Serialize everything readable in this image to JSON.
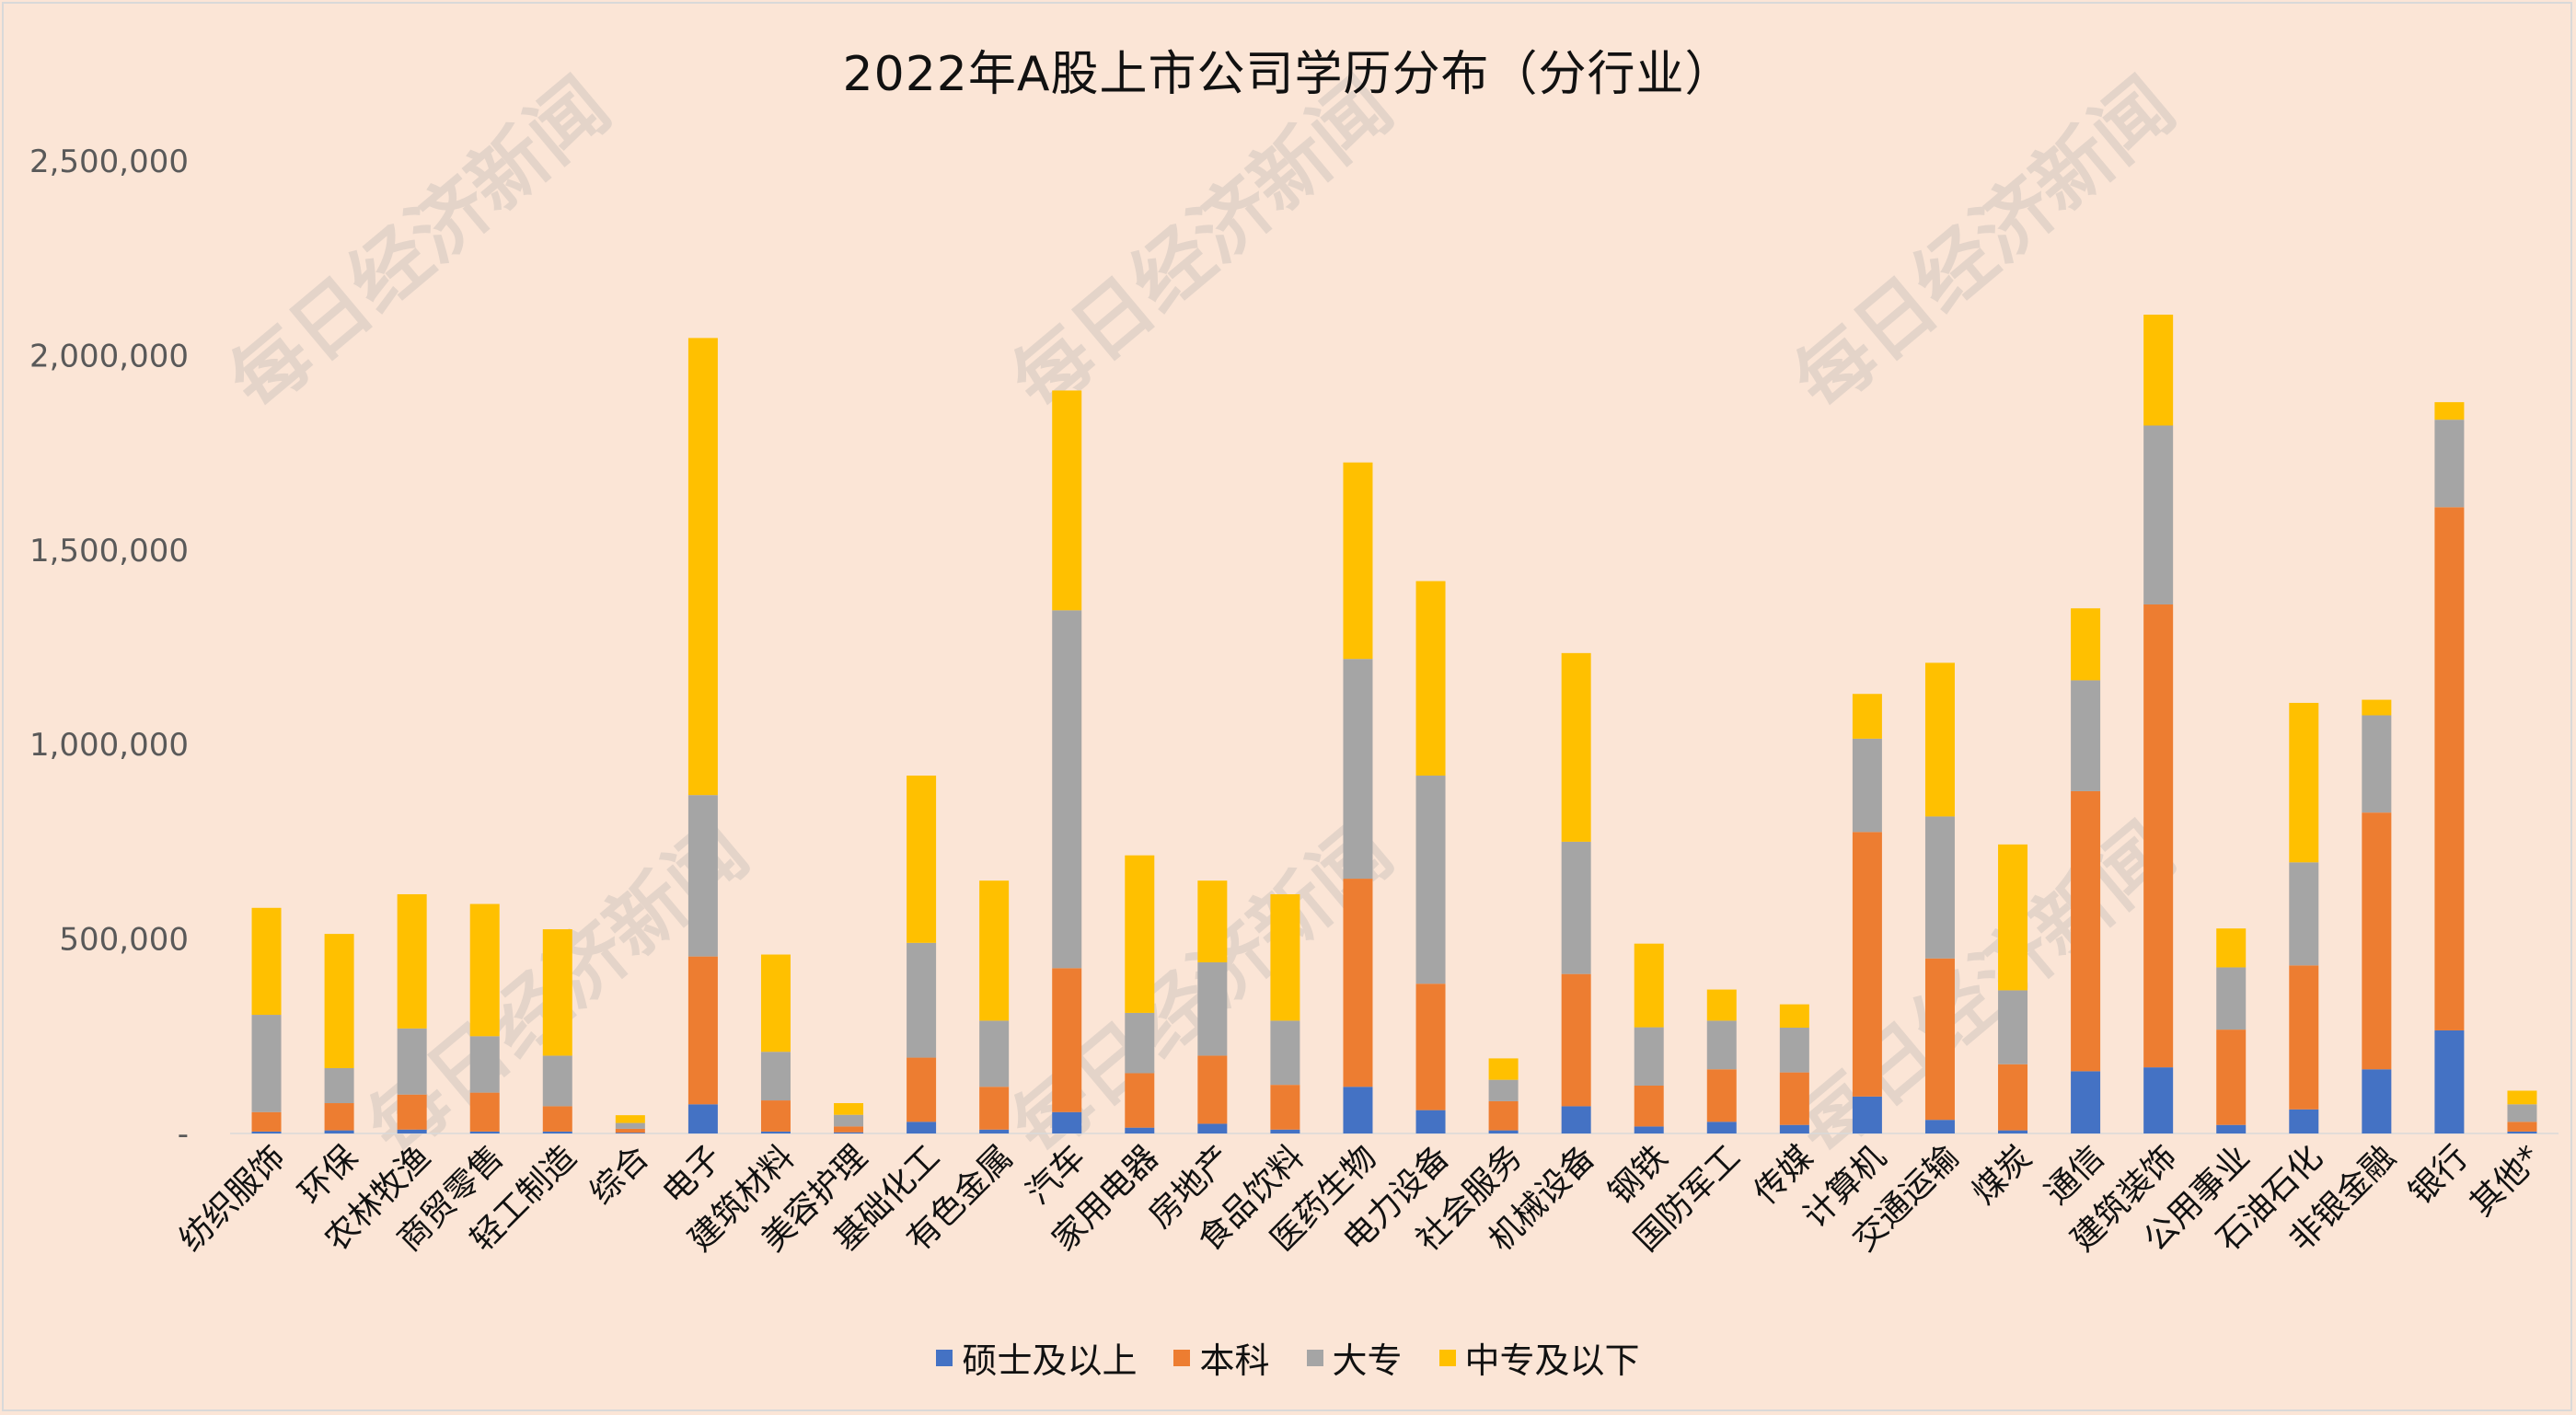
{
  "watermark_text": "每日经济新闻",
  "chart_data": {
    "type": "bar",
    "stacked": true,
    "title": "2022年A股上市公司学历分布（分行业）",
    "ylim": [
      0,
      2500000
    ],
    "yticks": [
      "-",
      "500,000",
      "1,000,000",
      "1,500,000",
      "2,000,000",
      "2,500,000"
    ],
    "ytick_values": [
      0,
      500000,
      1000000,
      1500000,
      2000000,
      2500000
    ],
    "grid": false,
    "legend_position": "bottom",
    "categories": [
      "纺织服饰",
      "环保",
      "农林牧渔",
      "商贸零售",
      "轻工制造",
      "综合",
      "电子",
      "建筑材料",
      "美容护理",
      "基础化工",
      "有色金属",
      "汽车",
      "家用电器",
      "房地产",
      "食品饮料",
      "医药生物",
      "电力设备",
      "社会服务",
      "机械设备",
      "钢铁",
      "国防军工",
      "传媒",
      "计算机",
      "交通运输",
      "煤炭",
      "通信",
      "建筑装饰",
      "公用事业",
      "石油石化",
      "非银金融",
      "银行",
      "其他*"
    ],
    "series": [
      {
        "name": "硕士及以上",
        "color": "#4472c4",
        "values": [
          5000,
          8000,
          10000,
          5000,
          5000,
          2000,
          75000,
          5000,
          3000,
          30000,
          10000,
          55000,
          15000,
          25000,
          10000,
          120000,
          60000,
          8000,
          70000,
          18000,
          30000,
          22000,
          95000,
          35000,
          8000,
          160000,
          170000,
          22000,
          62000,
          165000,
          265000,
          5000
        ]
      },
      {
        "name": "本科",
        "color": "#ed7d31",
        "values": [
          50000,
          70000,
          90000,
          100000,
          65000,
          10000,
          380000,
          80000,
          15000,
          165000,
          110000,
          370000,
          140000,
          175000,
          115000,
          535000,
          325000,
          75000,
          340000,
          105000,
          135000,
          135000,
          680000,
          415000,
          170000,
          720000,
          1190000,
          245000,
          370000,
          660000,
          1345000,
          25000
        ]
      },
      {
        "name": "大专",
        "color": "#a5a5a5",
        "values": [
          250000,
          90000,
          170000,
          145000,
          130000,
          15000,
          415000,
          125000,
          30000,
          295000,
          170000,
          920000,
          155000,
          240000,
          165000,
          565000,
          535000,
          55000,
          340000,
          150000,
          125000,
          115000,
          240000,
          365000,
          190000,
          285000,
          460000,
          160000,
          265000,
          250000,
          225000,
          45000
        ]
      },
      {
        "name": "中专及以下",
        "color": "#ffc000",
        "values": [
          275000,
          345000,
          345000,
          340000,
          325000,
          20000,
          1175000,
          250000,
          30000,
          430000,
          360000,
          565000,
          405000,
          210000,
          325000,
          505000,
          500000,
          55000,
          485000,
          215000,
          80000,
          60000,
          115000,
          395000,
          375000,
          185000,
          285000,
          100000,
          410000,
          40000,
          45000,
          35000
        ]
      }
    ]
  }
}
